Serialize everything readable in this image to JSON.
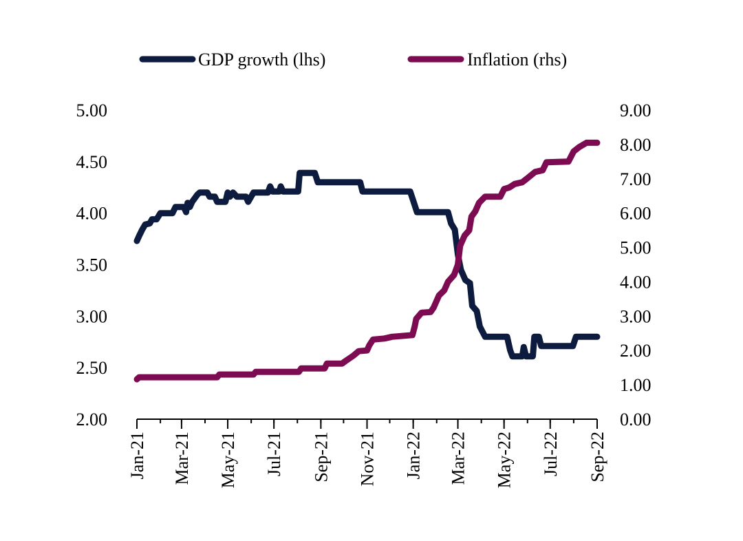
{
  "chart_data": {
    "type": "line",
    "title": "",
    "xlabel": "",
    "ylabel": "",
    "y2label": "",
    "x_tick_labels": [
      "Jan-21",
      "Mar-21",
      "May-21",
      "Jul-21",
      "Sep-21",
      "Nov-21",
      "Jan-22",
      "Mar-22",
      "May-22",
      "Jul-22",
      "Sep-22"
    ],
    "x_range": [
      "2021-01-01",
      "2022-09-01"
    ],
    "ylim": [
      2.0,
      5.0
    ],
    "y_ticks": [
      "2.00",
      "2.50",
      "3.00",
      "3.50",
      "4.00",
      "4.50",
      "5.00"
    ],
    "y2lim": [
      0.0,
      9.0
    ],
    "y2_ticks": [
      "0.00",
      "1.00",
      "2.00",
      "3.00",
      "4.00",
      "5.00",
      "6.00",
      "7.00",
      "8.00",
      "9.00"
    ],
    "grid": false,
    "legend_position": "top",
    "series": [
      {
        "name": "GDP growth (lhs)",
        "axis": "left",
        "color": "#0d1b3e",
        "points": [
          [
            "2021-01-01",
            3.73
          ],
          [
            "2021-01-04",
            3.78
          ],
          [
            "2021-01-08",
            3.84
          ],
          [
            "2021-01-12",
            3.89
          ],
          [
            "2021-01-18",
            3.9
          ],
          [
            "2021-01-21",
            3.94
          ],
          [
            "2021-01-27",
            3.94
          ],
          [
            "2021-02-01",
            4.0
          ],
          [
            "2021-02-17",
            4.0
          ],
          [
            "2021-02-21",
            4.06
          ],
          [
            "2021-03-04",
            4.06
          ],
          [
            "2021-03-07",
            4.01
          ],
          [
            "2021-03-09",
            4.1
          ],
          [
            "2021-03-12",
            4.06
          ],
          [
            "2021-03-15",
            4.11
          ],
          [
            "2021-03-22",
            4.18
          ],
          [
            "2021-03-25",
            4.2
          ],
          [
            "2021-04-04",
            4.2
          ],
          [
            "2021-04-07",
            4.16
          ],
          [
            "2021-04-14",
            4.16
          ],
          [
            "2021-04-17",
            4.11
          ],
          [
            "2021-04-28",
            4.11
          ],
          [
            "2021-05-01",
            4.2
          ],
          [
            "2021-05-04",
            4.16
          ],
          [
            "2021-05-08",
            4.2
          ],
          [
            "2021-05-13",
            4.16
          ],
          [
            "2021-05-25",
            4.16
          ],
          [
            "2021-05-28",
            4.11
          ],
          [
            "2021-06-04",
            4.2
          ],
          [
            "2021-06-23",
            4.2
          ],
          [
            "2021-06-26",
            4.26
          ],
          [
            "2021-06-29",
            4.21
          ],
          [
            "2021-07-08",
            4.21
          ],
          [
            "2021-07-10",
            4.26
          ],
          [
            "2021-07-13",
            4.21
          ],
          [
            "2021-08-02",
            4.21
          ],
          [
            "2021-08-04",
            4.39
          ],
          [
            "2021-08-24",
            4.39
          ],
          [
            "2021-08-28",
            4.3
          ],
          [
            "2021-10-23",
            4.3
          ],
          [
            "2021-10-26",
            4.21
          ],
          [
            "2021-12-28",
            4.21
          ],
          [
            "2022-01-02",
            4.1
          ],
          [
            "2022-01-06",
            4.01
          ],
          [
            "2022-02-16",
            4.01
          ],
          [
            "2022-02-20",
            3.9
          ],
          [
            "2022-02-25",
            3.84
          ],
          [
            "2022-03-01",
            3.6
          ],
          [
            "2022-03-05",
            3.45
          ],
          [
            "2022-03-11",
            3.35
          ],
          [
            "2022-03-17",
            3.32
          ],
          [
            "2022-03-20",
            3.1
          ],
          [
            "2022-03-26",
            3.05
          ],
          [
            "2022-03-30",
            2.9
          ],
          [
            "2022-04-06",
            2.8
          ],
          [
            "2022-05-05",
            2.8
          ],
          [
            "2022-05-09",
            2.67
          ],
          [
            "2022-05-12",
            2.61
          ],
          [
            "2022-05-25",
            2.61
          ],
          [
            "2022-05-27",
            2.7
          ],
          [
            "2022-05-30",
            2.61
          ],
          [
            "2022-06-08",
            2.61
          ],
          [
            "2022-06-10",
            2.8
          ],
          [
            "2022-06-16",
            2.8
          ],
          [
            "2022-06-19",
            2.71
          ],
          [
            "2022-07-31",
            2.71
          ],
          [
            "2022-08-04",
            2.8
          ],
          [
            "2022-09-01",
            2.8
          ]
        ]
      },
      {
        "name": "Inflation (rhs)",
        "axis": "right",
        "color": "#7d0b52",
        "points": [
          [
            "2021-01-01",
            1.16
          ],
          [
            "2021-01-04",
            1.22
          ],
          [
            "2021-04-17",
            1.22
          ],
          [
            "2021-04-20",
            1.3
          ],
          [
            "2021-06-04",
            1.3
          ],
          [
            "2021-06-07",
            1.38
          ],
          [
            "2021-08-03",
            1.38
          ],
          [
            "2021-08-06",
            1.48
          ],
          [
            "2021-09-06",
            1.48
          ],
          [
            "2021-09-09",
            1.62
          ],
          [
            "2021-09-29",
            1.62
          ],
          [
            "2021-10-04",
            1.7
          ],
          [
            "2021-10-14",
            1.85
          ],
          [
            "2021-10-21",
            1.98
          ],
          [
            "2021-11-01",
            2.0
          ],
          [
            "2021-11-04",
            2.15
          ],
          [
            "2021-11-09",
            2.32
          ],
          [
            "2021-11-24",
            2.35
          ],
          [
            "2021-12-04",
            2.4
          ],
          [
            "2021-12-31",
            2.45
          ],
          [
            "2022-01-03",
            2.7
          ],
          [
            "2022-01-05",
            2.92
          ],
          [
            "2022-01-12",
            3.1
          ],
          [
            "2022-01-24",
            3.12
          ],
          [
            "2022-01-28",
            3.25
          ],
          [
            "2022-02-04",
            3.6
          ],
          [
            "2022-02-11",
            3.75
          ],
          [
            "2022-02-16",
            4.0
          ],
          [
            "2022-02-24",
            4.2
          ],
          [
            "2022-03-01",
            4.5
          ],
          [
            "2022-03-04",
            5.05
          ],
          [
            "2022-03-10",
            5.35
          ],
          [
            "2022-03-16",
            5.5
          ],
          [
            "2022-03-19",
            5.9
          ],
          [
            "2022-03-24",
            6.05
          ],
          [
            "2022-03-29",
            6.3
          ],
          [
            "2022-04-06",
            6.48
          ],
          [
            "2022-04-26",
            6.48
          ],
          [
            "2022-05-01",
            6.7
          ],
          [
            "2022-05-08",
            6.75
          ],
          [
            "2022-05-15",
            6.85
          ],
          [
            "2022-05-25",
            6.9
          ],
          [
            "2022-06-01",
            7.02
          ],
          [
            "2022-06-11",
            7.2
          ],
          [
            "2022-06-21",
            7.25
          ],
          [
            "2022-06-26",
            7.48
          ],
          [
            "2022-07-25",
            7.5
          ],
          [
            "2022-08-01",
            7.8
          ],
          [
            "2022-08-08",
            7.92
          ],
          [
            "2022-08-18",
            8.05
          ],
          [
            "2022-09-01",
            8.05
          ]
        ]
      }
    ]
  }
}
